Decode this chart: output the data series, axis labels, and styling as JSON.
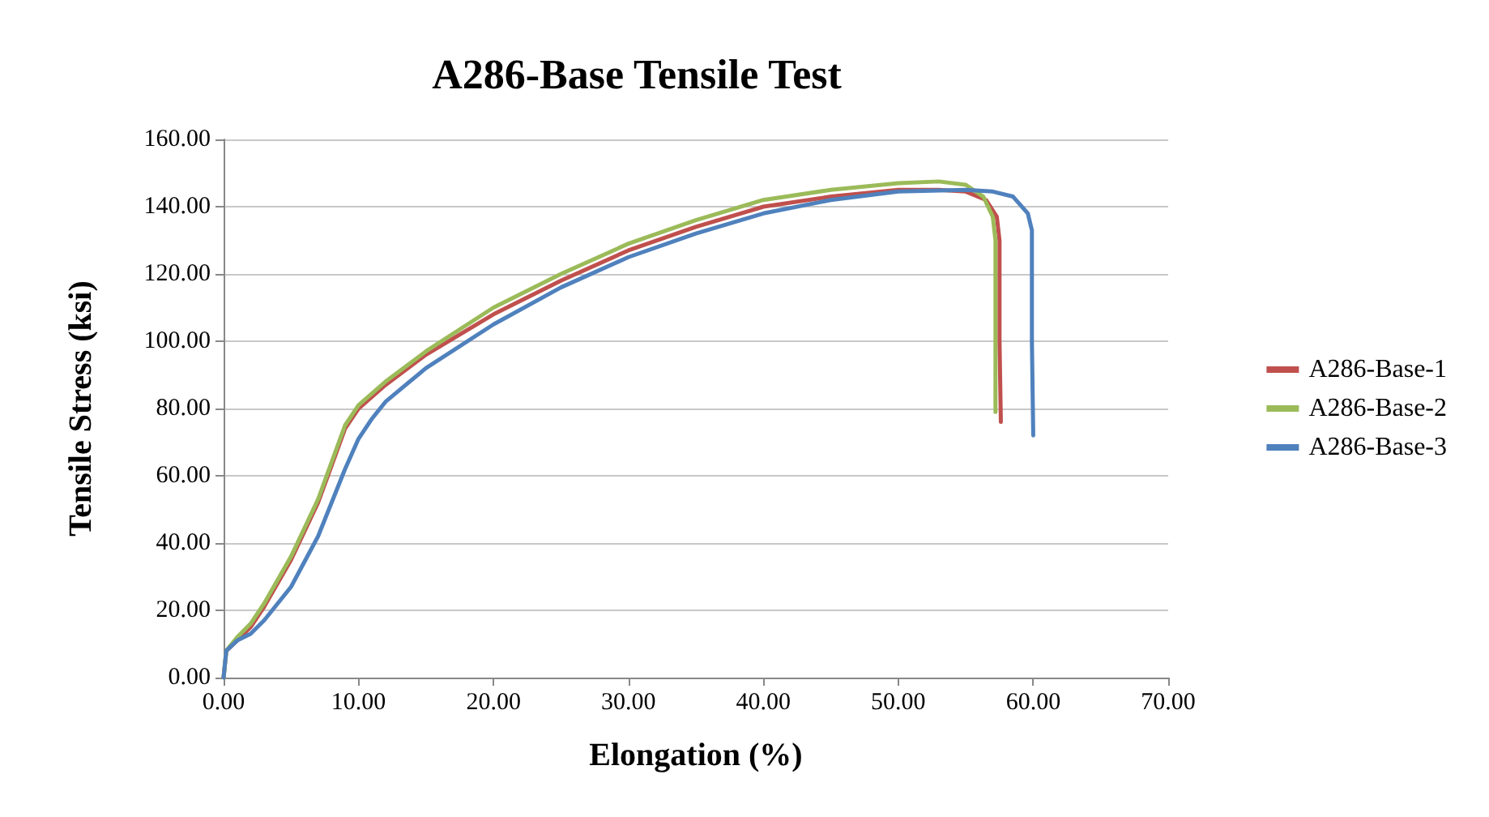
{
  "chart_data": {
    "type": "line",
    "title": "A286-Base Tensile Test",
    "xlabel": "Elongation (%)",
    "ylabel": "Tensile Stress (ksi)",
    "xlim": [
      0,
      70
    ],
    "ylim": [
      0,
      160
    ],
    "xticks": [
      {
        "value": 0,
        "label": "0.00"
      },
      {
        "value": 10,
        "label": "10.00"
      },
      {
        "value": 20,
        "label": "20.00"
      },
      {
        "value": 30,
        "label": "30.00"
      },
      {
        "value": 40,
        "label": "40.00"
      },
      {
        "value": 50,
        "label": "50.00"
      },
      {
        "value": 60,
        "label": "60.00"
      },
      {
        "value": 70,
        "label": "70.00"
      }
    ],
    "yticks": [
      {
        "value": 0,
        "label": "0.00"
      },
      {
        "value": 20,
        "label": "20.00"
      },
      {
        "value": 40,
        "label": "40.00"
      },
      {
        "value": 60,
        "label": "60.00"
      },
      {
        "value": 80,
        "label": "80.00"
      },
      {
        "value": 100,
        "label": "100.00"
      },
      {
        "value": 120,
        "label": "120.00"
      },
      {
        "value": 140,
        "label": "140.00"
      },
      {
        "value": 160,
        "label": "160.00"
      }
    ],
    "grid": "y",
    "legend": "right",
    "marker": "none",
    "line_style": "solid",
    "series": [
      {
        "name": "A286-Base-1",
        "color": "#c0504d",
        "x": [
          0,
          0.2,
          1,
          2,
          3,
          5,
          7,
          8,
          9,
          10,
          12,
          15,
          20,
          25,
          30,
          35,
          40,
          45,
          50,
          53,
          55,
          56.5,
          57.3,
          57.5,
          57.5,
          57.6
        ],
        "values": [
          0,
          8,
          11,
          15,
          21,
          35,
          52,
          63,
          74,
          80,
          87,
          96,
          108,
          118,
          127,
          134,
          140,
          143,
          145,
          145,
          144.5,
          142,
          137,
          130,
          100,
          76
        ]
      },
      {
        "name": "A286-Base-2",
        "color": "#9bbb59",
        "x": [
          0,
          0.2,
          1,
          2,
          3,
          5,
          7,
          8,
          9,
          10,
          12,
          15,
          20,
          25,
          30,
          35,
          40,
          45,
          50,
          53,
          55,
          56.3,
          57,
          57.2,
          57.2,
          57.2
        ],
        "values": [
          0,
          8,
          12,
          16,
          22,
          36,
          53,
          64,
          75,
          81,
          88,
          97,
          110,
          120,
          129,
          136,
          142,
          145,
          147,
          147.5,
          146.5,
          143,
          137,
          130,
          100,
          79
        ]
      },
      {
        "name": "A286-Base-3",
        "color": "#4f81bd",
        "x": [
          0,
          0.2,
          1,
          2,
          3,
          5,
          7,
          8,
          9,
          10,
          11,
          12,
          15,
          20,
          25,
          30,
          35,
          40,
          45,
          50,
          55,
          57,
          58.5,
          59.6,
          59.9,
          59.9,
          60
        ],
        "values": [
          0,
          8,
          11,
          13,
          17,
          27,
          42,
          52,
          62,
          71,
          77,
          82,
          92,
          105,
          116,
          125,
          132,
          138,
          142,
          144.5,
          145,
          144.5,
          143,
          138,
          133,
          100,
          72
        ]
      }
    ]
  }
}
